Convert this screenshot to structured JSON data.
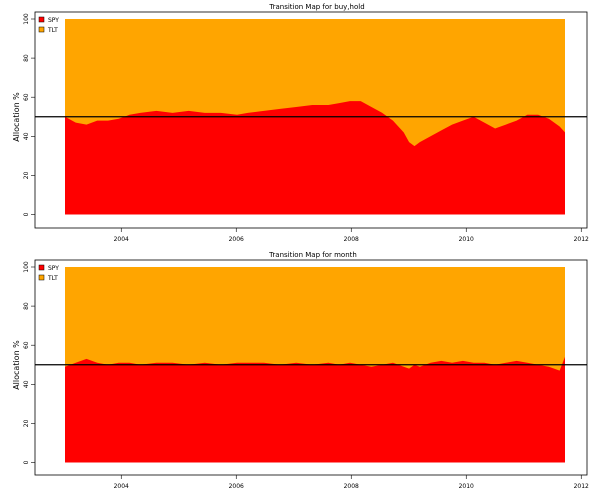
{
  "colors": {
    "spy": "#ff0000",
    "tlt": "#ffa500",
    "axis": "#000000",
    "ref_line": "#000000"
  },
  "chart_data": [
    {
      "type": "area",
      "stacked": true,
      "title": "Transition Map for buy,hold",
      "xlabel": "",
      "ylabel": "Allocation %",
      "xlim": [
        2002.5,
        2012.1
      ],
      "ylim": [
        0,
        100
      ],
      "x_ticks": [
        "2004",
        "2006",
        "2008",
        "2010",
        "2012"
      ],
      "x_tick_values": [
        2004,
        2006,
        2008,
        2010,
        2012
      ],
      "y_ticks": [
        "0",
        "20",
        "40",
        "60",
        "80",
        "100"
      ],
      "y_tick_values": [
        0,
        20,
        40,
        60,
        80,
        100
      ],
      "reference_line": 50,
      "legend": [
        "SPY",
        "TLT"
      ],
      "legend_position": "top-left",
      "x": [
        2002.6,
        2002.8,
        2003.0,
        2003.2,
        2003.4,
        2003.6,
        2003.8,
        2004.0,
        2004.3,
        2004.6,
        2004.9,
        2005.2,
        2005.5,
        2005.8,
        2006.0,
        2006.3,
        2006.6,
        2006.9,
        2007.2,
        2007.5,
        2007.7,
        2007.9,
        2008.1,
        2008.3,
        2008.5,
        2008.7,
        2008.9,
        2009.0,
        2009.1,
        2009.2,
        2009.4,
        2009.6,
        2009.8,
        2010.0,
        2010.2,
        2010.4,
        2010.6,
        2010.8,
        2011.0,
        2011.2,
        2011.4,
        2011.6,
        2011.8,
        2011.9
      ],
      "series": [
        {
          "name": "SPY",
          "values": [
            50,
            47,
            46,
            48,
            48,
            49,
            51,
            52,
            53,
            52,
            53,
            52,
            52,
            51,
            52,
            53,
            54,
            55,
            56,
            56,
            57,
            58,
            58,
            55,
            52,
            48,
            42,
            37,
            35,
            37,
            40,
            43,
            46,
            48,
            50,
            47,
            44,
            46,
            48,
            51,
            51,
            49,
            45,
            42
          ]
        },
        {
          "name": "TLT",
          "values": [
            50,
            53,
            54,
            52,
            52,
            51,
            49,
            48,
            47,
            48,
            47,
            48,
            48,
            49,
            48,
            47,
            46,
            45,
            44,
            44,
            43,
            42,
            42,
            45,
            48,
            52,
            58,
            63,
            65,
            63,
            60,
            57,
            54,
            52,
            50,
            53,
            56,
            54,
            52,
            49,
            49,
            51,
            55,
            58
          ]
        }
      ]
    },
    {
      "type": "area",
      "stacked": true,
      "title": "Transition Map for month",
      "xlabel": "",
      "ylabel": "Allocation %",
      "xlim": [
        2002.5,
        2012.1
      ],
      "ylim": [
        0,
        100
      ],
      "x_ticks": [
        "2004",
        "2006",
        "2008",
        "2010",
        "2012"
      ],
      "x_tick_values": [
        2004,
        2006,
        2008,
        2010,
        2012
      ],
      "y_ticks": [
        "0",
        "20",
        "40",
        "60",
        "80",
        "100"
      ],
      "y_tick_values": [
        0,
        20,
        40,
        60,
        80,
        100
      ],
      "reference_line": 50,
      "legend": [
        "SPY",
        "TLT"
      ],
      "legend_position": "top-left",
      "x": [
        2002.6,
        2002.8,
        2003.0,
        2003.2,
        2003.4,
        2003.6,
        2003.8,
        2004.0,
        2004.3,
        2004.6,
        2004.9,
        2005.2,
        2005.5,
        2005.8,
        2006.0,
        2006.3,
        2006.6,
        2006.9,
        2007.2,
        2007.5,
        2007.7,
        2007.9,
        2008.1,
        2008.3,
        2008.5,
        2008.7,
        2008.9,
        2009.0,
        2009.1,
        2009.2,
        2009.4,
        2009.6,
        2009.8,
        2010.0,
        2010.2,
        2010.4,
        2010.6,
        2010.8,
        2011.0,
        2011.2,
        2011.4,
        2011.6,
        2011.8,
        2011.9
      ],
      "series": [
        {
          "name": "SPY",
          "values": [
            49,
            51,
            53,
            51,
            50,
            51,
            51,
            50,
            51,
            51,
            50,
            51,
            50,
            51,
            51,
            51,
            50,
            51,
            50,
            51,
            50,
            51,
            50,
            49,
            50,
            51,
            49,
            48,
            50,
            49,
            51,
            52,
            51,
            52,
            51,
            51,
            50,
            51,
            52,
            51,
            50,
            49,
            47,
            54
          ]
        },
        {
          "name": "TLT",
          "values": [
            51,
            49,
            47,
            49,
            50,
            49,
            49,
            50,
            49,
            49,
            50,
            49,
            50,
            49,
            49,
            49,
            50,
            49,
            50,
            49,
            50,
            49,
            50,
            51,
            50,
            49,
            51,
            52,
            50,
            51,
            49,
            48,
            49,
            48,
            49,
            49,
            50,
            49,
            48,
            49,
            50,
            51,
            53,
            46
          ]
        }
      ]
    }
  ]
}
